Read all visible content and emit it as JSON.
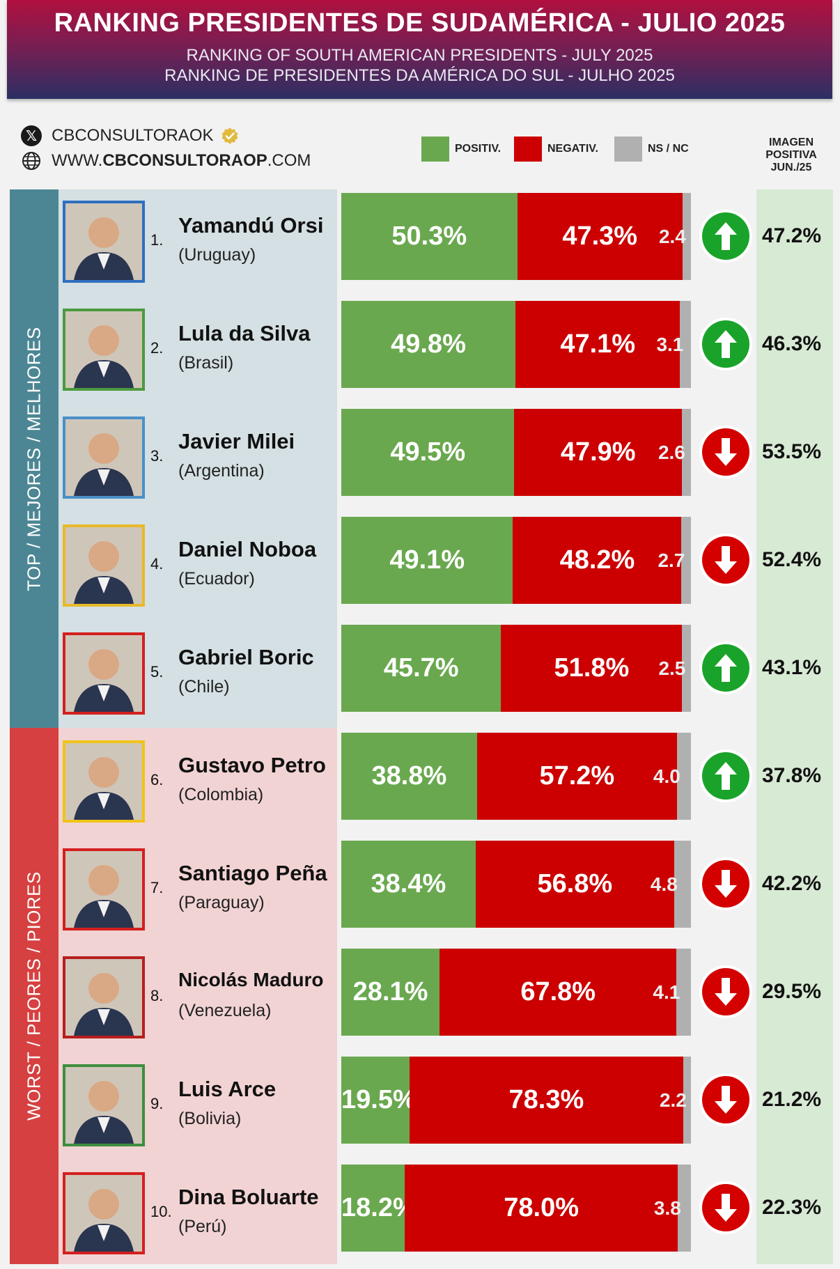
{
  "header": {
    "title": "RANKING PRESIDENTES DE SUDAMÉRICA - JULIO 2025",
    "subtitle_en": "RANKING OF SOUTH AMERICAN PRESIDENTS -   JULY 2025",
    "subtitle_pt": "RANKING DE PRESIDENTES DA AMÉRICA DO SUL - JULHO 2025"
  },
  "brand": {
    "handle": "CBCONSULTORAOK",
    "website_prefix": "WWW.",
    "website_bold": "CBCONSULTORAOP",
    "website_suffix": ".COM",
    "icons": [
      "x-logo-icon",
      "verified-badge-icon",
      "globe-icon"
    ]
  },
  "legend": {
    "positive": "POSITIV.",
    "negative": "NEGATIV.",
    "nsnc": "NS / NC"
  },
  "imagen_header": [
    "IMAGEN",
    "POSITIVA",
    "JUN./25"
  ],
  "sections": {
    "top": "TOP / MEJORES / MELHORES",
    "worst": "WORST / PEORES / PIORES"
  },
  "colors": {
    "positive": "#6aa84f",
    "negative": "#cc0000",
    "nsnc": "#b0b0b0",
    "trend_up": "#1aa32a",
    "trend_down": "#d40000"
  },
  "chart_data": {
    "type": "bar",
    "stacked": true,
    "orientation": "horizontal",
    "title": "RANKING PRESIDENTES DE SUDAMÉRICA - JULIO 2025",
    "categories": [
      "Yamandú Orsi",
      "Lula da Silva",
      "Javier Milei",
      "Daniel Noboa",
      "Gabriel Boric",
      "Gustavo Petro",
      "Santiago Peña",
      "Nicolás Maduro",
      "Luis Arce",
      "Dina Boluarte"
    ],
    "series": [
      {
        "name": "POSITIV.",
        "values": [
          50.3,
          49.8,
          49.5,
          49.1,
          45.7,
          38.8,
          38.4,
          28.1,
          19.5,
          18.2
        ]
      },
      {
        "name": "NEGATIV.",
        "values": [
          47.3,
          47.1,
          47.9,
          48.2,
          51.8,
          57.2,
          56.8,
          67.8,
          78.3,
          78.0
        ]
      },
      {
        "name": "NS / NC",
        "values": [
          2.4,
          3.1,
          2.6,
          2.7,
          2.5,
          4.0,
          4.8,
          4.1,
          2.2,
          3.8
        ]
      }
    ],
    "previous_positive_jun25": [
      47.2,
      46.3,
      53.5,
      52.4,
      43.1,
      37.8,
      42.2,
      29.5,
      21.2,
      22.3
    ],
    "trend": [
      "up",
      "up",
      "down",
      "down",
      "up",
      "up",
      "down",
      "down",
      "down",
      "down"
    ],
    "xlim": [
      0,
      100
    ],
    "legend": "top"
  },
  "rows": [
    {
      "rank": "1.",
      "name": "Yamandú Orsi",
      "country": "(Uruguay)",
      "frame": "#2f6fbf",
      "pos_label": "50.3%",
      "neg_label": "47.3%",
      "ns_label": "2.4",
      "prev_label": "47.2%"
    },
    {
      "rank": "2.",
      "name": "Lula da Silva",
      "country": "(Brasil)",
      "frame": "#4c9a3e",
      "pos_label": "49.8%",
      "neg_label": "47.1%",
      "ns_label": "3.1",
      "prev_label": "46.3%"
    },
    {
      "rank": "3.",
      "name": "Javier Milei",
      "country": "(Argentina)",
      "frame": "#4a90c8",
      "pos_label": "49.5%",
      "neg_label": "47.9%",
      "ns_label": "2.6",
      "prev_label": "53.5%"
    },
    {
      "rank": "4.",
      "name": "Daniel Noboa",
      "country": "(Ecuador)",
      "frame": "#e8b92a",
      "pos_label": "49.1%",
      "neg_label": "48.2%",
      "ns_label": "2.7",
      "prev_label": "52.4%"
    },
    {
      "rank": "5.",
      "name": "Gabriel Boric",
      "country": "(Chile)",
      "frame": "#d32020",
      "pos_label": "45.7%",
      "neg_label": "51.8%",
      "ns_label": "2.5",
      "prev_label": "43.1%"
    },
    {
      "rank": "6.",
      "name": "Gustavo Petro",
      "country": "(Colombia)",
      "frame": "#f0c419",
      "pos_label": "38.8%",
      "neg_label": "57.2%",
      "ns_label": "4.0",
      "prev_label": "37.8%"
    },
    {
      "rank": "7.",
      "name": "Santiago Peña",
      "country": "(Paraguay)",
      "frame": "#d32020",
      "pos_label": "38.4%",
      "neg_label": "56.8%",
      "ns_label": "4.8",
      "prev_label": "42.2%"
    },
    {
      "rank": "8.",
      "name": "Nicolás Maduro",
      "country": "(Venezuela)",
      "frame": "#b81e1e",
      "pos_label": "28.1%",
      "neg_label": "67.8%",
      "ns_label": "4.1",
      "prev_label": "29.5%"
    },
    {
      "rank": "9.",
      "name": "Luis Arce",
      "country": "(Bolivia)",
      "frame": "#3e8e3e",
      "pos_label": "19.5%",
      "neg_label": "78.3%",
      "ns_label": "2.2",
      "prev_label": "21.2%"
    },
    {
      "rank": "10.",
      "name": "Dina Boluarte",
      "country": "(Perú)",
      "frame": "#d32020",
      "pos_label": "18.2%",
      "neg_label": "78.0%",
      "ns_label": "3.8",
      "prev_label": "22.3%"
    }
  ]
}
